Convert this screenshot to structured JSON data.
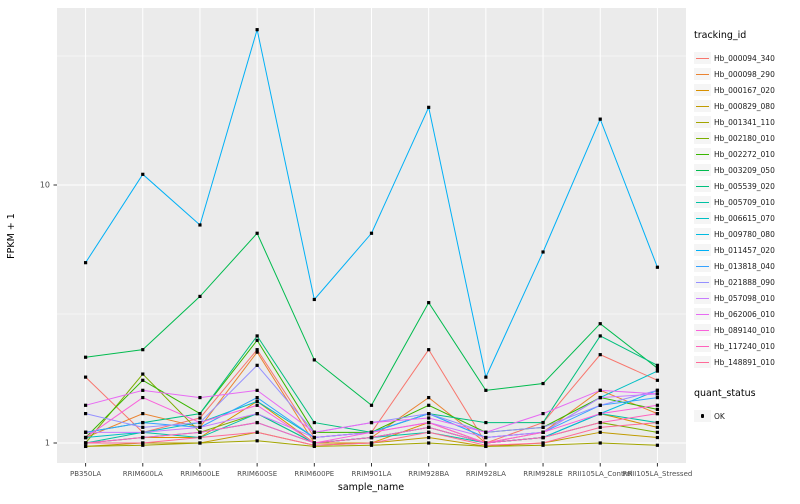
{
  "chart_data": {
    "type": "line",
    "title": "",
    "xlabel": "sample_name",
    "ylabel": "FPKM + 1",
    "y_scale": "log10",
    "y_ticks": [
      1,
      10
    ],
    "y_minor_ticks": [
      3.162,
      31.62
    ],
    "ylim": [
      0.84,
      48
    ],
    "panel_bg": "#EBEBEB",
    "grid_color": "#FFFFFF",
    "point_color": "#000000",
    "axis_text_color": "#4D4D4D",
    "categories": [
      "PB350LA",
      "RRIM600LA",
      "RRIM600LE",
      "RRIM600SE",
      "RRIM600PE",
      "RRIM901LA",
      "RRIM928BA",
      "RRIM928LA",
      "RRIM928LE",
      "RRII105LA_Control",
      "RRII105LA_Stressed"
    ],
    "series": [
      {
        "name": "Hb_000094_340",
        "color": "#F8766D",
        "values": [
          1.8,
          1.1,
          1.25,
          2.3,
          1.05,
          1.1,
          2.3,
          1.0,
          1.2,
          2.2,
          1.75
        ]
      },
      {
        "name": "Hb_000098_290",
        "color": "#EA8331",
        "values": [
          1.05,
          1.3,
          1.15,
          2.25,
          1.0,
          1.05,
          1.5,
          1.0,
          1.1,
          1.6,
          1.3
        ]
      },
      {
        "name": "Hb_000167_020",
        "color": "#D89000",
        "values": [
          1.0,
          1.05,
          1.05,
          1.45,
          1.0,
          1.0,
          1.2,
          1.0,
          1.05,
          1.3,
          1.15
        ]
      },
      {
        "name": "Hb_000829_080",
        "color": "#C09B00",
        "values": [
          0.97,
          1.0,
          1.0,
          1.1,
          0.98,
          1.0,
          1.05,
          0.97,
          1.0,
          1.1,
          1.05
        ]
      },
      {
        "name": "Hb_001341_110",
        "color": "#A3A500",
        "values": [
          0.97,
          0.98,
          1.0,
          1.02,
          0.97,
          0.98,
          1.0,
          0.97,
          0.98,
          1.0,
          0.98
        ]
      },
      {
        "name": "Hb_002180_010",
        "color": "#7CAE00",
        "values": [
          1.0,
          1.85,
          1.1,
          1.3,
          1.0,
          1.05,
          1.15,
          1.0,
          1.05,
          1.2,
          1.1
        ]
      },
      {
        "name": "Hb_002272_010",
        "color": "#39B600",
        "values": [
          1.05,
          1.75,
          1.3,
          2.5,
          1.1,
          1.1,
          1.4,
          1.1,
          1.15,
          1.5,
          1.35
        ]
      },
      {
        "name": "Hb_003209_050",
        "color": "#00BB4E",
        "values": [
          2.15,
          2.3,
          3.7,
          6.5,
          2.1,
          1.4,
          3.5,
          1.6,
          1.7,
          2.9,
          1.95
        ]
      },
      {
        "name": "Hb_005539_020",
        "color": "#00BF7D",
        "values": [
          1.1,
          1.2,
          1.3,
          2.6,
          1.2,
          1.1,
          1.3,
          1.2,
          1.2,
          2.6,
          2.0
        ]
      },
      {
        "name": "Hb_005709_010",
        "color": "#00C1A3",
        "values": [
          1.0,
          1.1,
          1.05,
          1.3,
          1.0,
          1.05,
          1.1,
          1.0,
          1.05,
          1.3,
          1.2
        ]
      },
      {
        "name": "Hb_006615_070",
        "color": "#00BFC4",
        "values": [
          1.05,
          1.1,
          1.2,
          1.45,
          1.05,
          1.1,
          1.3,
          1.05,
          1.1,
          1.5,
          1.9
        ]
      },
      {
        "name": "Hb_009780_080",
        "color": "#00BAE0",
        "values": [
          1.0,
          1.05,
          1.1,
          1.2,
          1.0,
          1.05,
          1.15,
          1.0,
          1.05,
          1.3,
          1.6
        ]
      },
      {
        "name": "Hb_011457_020",
        "color": "#00B0F6",
        "values": [
          5.0,
          11.0,
          7.0,
          40.0,
          3.6,
          6.5,
          20.0,
          1.8,
          5.5,
          18.0,
          4.8
        ]
      },
      {
        "name": "Hb_013818_040",
        "color": "#35A2FF",
        "values": [
          1.1,
          1.2,
          1.15,
          1.5,
          1.05,
          1.1,
          1.3,
          1.05,
          1.1,
          1.4,
          1.5
        ]
      },
      {
        "name": "Hb_021888_090",
        "color": "#9590FF",
        "values": [
          1.3,
          1.15,
          1.2,
          2.0,
          1.1,
          1.2,
          1.3,
          1.1,
          1.15,
          1.4,
          1.6
        ]
      },
      {
        "name": "Hb_057098_010",
        "color": "#C77CFF",
        "values": [
          1.1,
          1.1,
          1.15,
          1.3,
          1.05,
          1.1,
          1.2,
          1.05,
          1.1,
          1.5,
          1.55
        ]
      },
      {
        "name": "Hb_062006_010",
        "color": "#E76BF3",
        "values": [
          1.4,
          1.6,
          1.5,
          1.6,
          1.1,
          1.2,
          1.25,
          1.1,
          1.3,
          1.6,
          1.55
        ]
      },
      {
        "name": "Hb_089140_010",
        "color": "#FA62DB",
        "values": [
          1.05,
          1.5,
          1.2,
          1.4,
          1.0,
          1.1,
          1.2,
          1.0,
          1.1,
          1.3,
          1.4
        ]
      },
      {
        "name": "Hb_117240_010",
        "color": "#FF62BC",
        "values": [
          1.0,
          1.05,
          1.1,
          1.2,
          1.0,
          1.05,
          1.15,
          1.0,
          1.05,
          1.2,
          1.3
        ]
      },
      {
        "name": "Hb_148891_010",
        "color": "#FF6A98",
        "values": [
          1.0,
          1.0,
          1.05,
          1.1,
          0.98,
          1.0,
          1.1,
          0.98,
          1.0,
          1.15,
          1.2
        ]
      }
    ],
    "legend": {
      "color_title": "tracking_id",
      "shape_title": "quant_status",
      "shape_items": [
        {
          "label": "OK",
          "shape": "point",
          "color": "#000000"
        }
      ]
    }
  }
}
